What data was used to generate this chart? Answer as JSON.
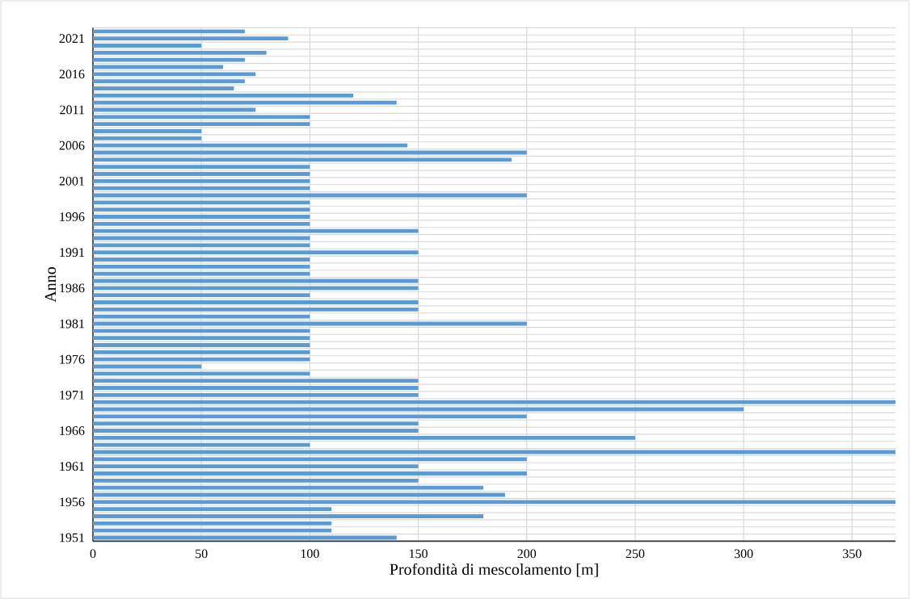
{
  "chart_data": {
    "type": "bar",
    "orientation": "horizontal",
    "xlabel": "Profondità di mescolamento [m]",
    "ylabel": "Anno",
    "categories": [
      null,
      "2021",
      null,
      null,
      null,
      null,
      "2016",
      null,
      null,
      null,
      null,
      "2011",
      null,
      null,
      null,
      null,
      "2006",
      null,
      null,
      null,
      null,
      "2001",
      null,
      null,
      null,
      null,
      "1996",
      null,
      null,
      null,
      null,
      "1991",
      null,
      null,
      null,
      null,
      "1986",
      null,
      null,
      null,
      null,
      "1981",
      null,
      null,
      null,
      null,
      "1976",
      null,
      null,
      null,
      null,
      "1971",
      null,
      null,
      null,
      null,
      "1966",
      null,
      null,
      null,
      null,
      "1961",
      null,
      null,
      null,
      null,
      "1956",
      null,
      null,
      null,
      null,
      "1951"
    ],
    "values": [
      70,
      90,
      50,
      80,
      70,
      60,
      75,
      70,
      65,
      120,
      140,
      75,
      100,
      100,
      50,
      50,
      145,
      200,
      193,
      100,
      100,
      100,
      100,
      200,
      100,
      100,
      100,
      100,
      150,
      100,
      100,
      150,
      100,
      100,
      100,
      150,
      150,
      100,
      150,
      150,
      100,
      200,
      100,
      100,
      100,
      100,
      100,
      50,
      100,
      150,
      150,
      150,
      370,
      300,
      200,
      150,
      150,
      250,
      100,
      370,
      200,
      150,
      200,
      150,
      180,
      190,
      370,
      110,
      180,
      110,
      110,
      140
    ],
    "color": "#5b9bd5",
    "xlim": [
      0,
      370
    ],
    "xticks": [
      0,
      50,
      100,
      150,
      200,
      250,
      300,
      350
    ],
    "grid": true
  }
}
